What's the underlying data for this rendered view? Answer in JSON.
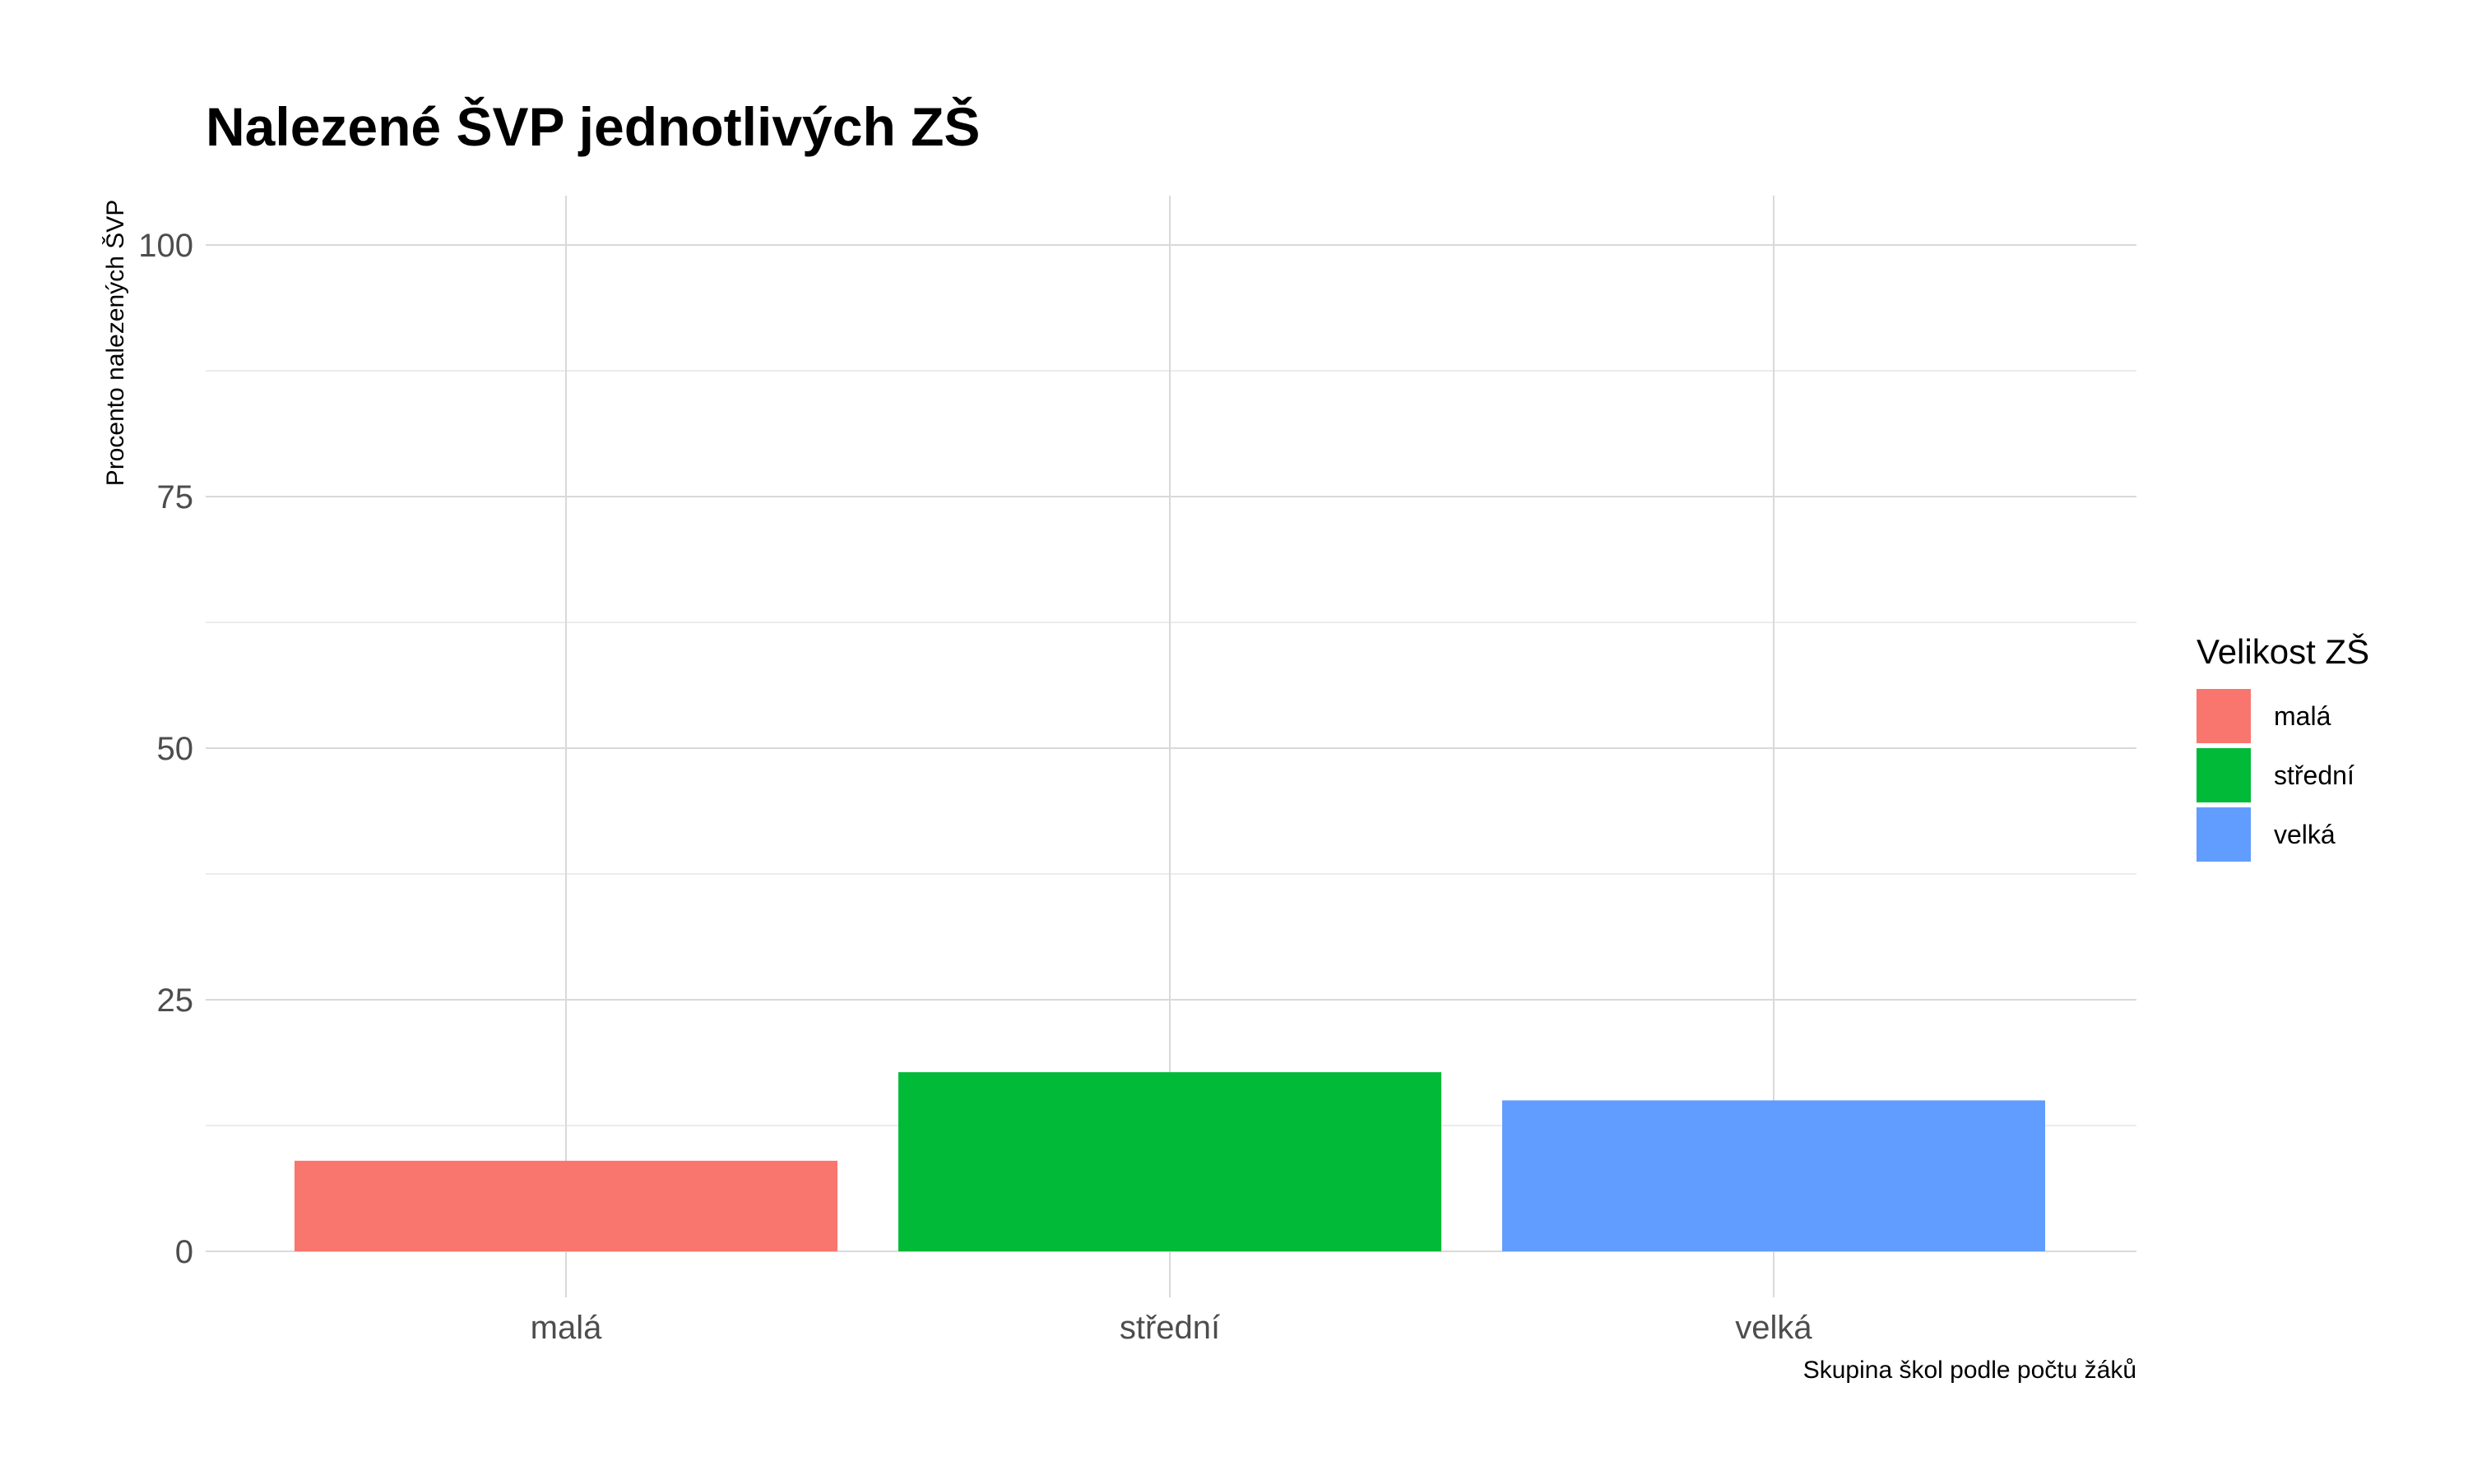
{
  "chart_data": {
    "type": "bar",
    "title": "Nalezené ŠVP jednotlivých ZŠ",
    "xlabel": "Skupina škol podle počtu žáků",
    "ylabel": "Procento nalezených ŠVP",
    "categories": [
      "malá",
      "střední",
      "velká"
    ],
    "values": [
      9,
      17.8,
      15
    ],
    "colors": [
      "#F8766D",
      "#00BA38",
      "#619CFF"
    ],
    "ylim": [
      0,
      100
    ],
    "yticks": [
      "0",
      "25",
      "50",
      "75",
      "100"
    ],
    "grid": true,
    "legend": {
      "title": "Velikost ZŠ",
      "position": "right",
      "items": [
        "malá",
        "střední",
        "velká"
      ]
    }
  }
}
